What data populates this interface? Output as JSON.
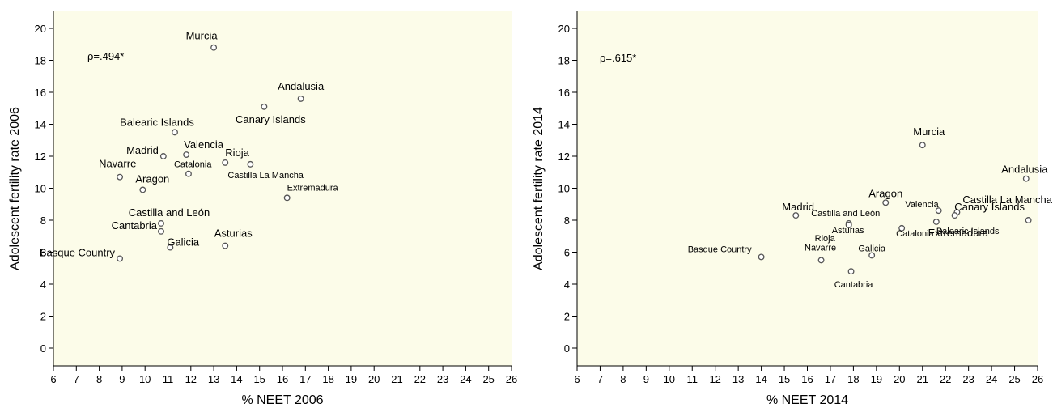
{
  "chart_data": [
    {
      "type": "scatter",
      "xlabel": "% NEET 2006",
      "ylabel": "Adolescent fertility rate 2006",
      "xlim": [
        6,
        26
      ],
      "ylim": [
        -1,
        21
      ],
      "xticks": [
        6,
        7,
        8,
        9,
        10,
        11,
        12,
        13,
        14,
        15,
        16,
        17,
        18,
        19,
        20,
        21,
        22,
        23,
        24,
        25,
        26
      ],
      "yticks": [
        0,
        2,
        4,
        6,
        8,
        10,
        12,
        14,
        16,
        18,
        20
      ],
      "grid": false,
      "annotation": "ρ=.494*",
      "points": [
        {
          "label": "Murcia",
          "x": 13.0,
          "y": 18.8
        },
        {
          "label": "Andalusia",
          "x": 16.8,
          "y": 15.6
        },
        {
          "label": "Canary Islands",
          "x": 15.2,
          "y": 15.1
        },
        {
          "label": "Balearic Islands",
          "x": 11.3,
          "y": 13.5
        },
        {
          "label": "Madrid",
          "x": 10.8,
          "y": 12.0
        },
        {
          "label": "Valencia",
          "x": 11.8,
          "y": 12.1
        },
        {
          "label": "Rioja",
          "x": 13.5,
          "y": 11.6
        },
        {
          "label": "Castilla La Mancha",
          "x": 14.6,
          "y": 11.5
        },
        {
          "label": "Catalonia",
          "x": 11.9,
          "y": 10.9
        },
        {
          "label": "Navarre",
          "x": 8.9,
          "y": 10.7
        },
        {
          "label": "Aragon",
          "x": 9.9,
          "y": 9.9
        },
        {
          "label": "Extremadura",
          "x": 16.2,
          "y": 9.4
        },
        {
          "label": "Castilla and León",
          "x": 10.7,
          "y": 7.8
        },
        {
          "label": "Cantabria",
          "x": 10.7,
          "y": 7.3
        },
        {
          "label": "Galicia",
          "x": 11.1,
          "y": 6.3
        },
        {
          "label": "Asturias",
          "x": 13.5,
          "y": 6.4
        },
        {
          "label": "Basque Country",
          "x": 8.9,
          "y": 5.6
        }
      ]
    },
    {
      "type": "scatter",
      "xlabel": "% NEET 2014",
      "ylabel": "Adolescent fertility rate 2014",
      "xlim": [
        6,
        26
      ],
      "ylim": [
        -1,
        21
      ],
      "xticks": [
        6,
        7,
        8,
        9,
        10,
        11,
        12,
        13,
        14,
        15,
        16,
        17,
        18,
        19,
        20,
        21,
        22,
        23,
        24,
        25,
        26
      ],
      "yticks": [
        0,
        2,
        4,
        6,
        8,
        10,
        12,
        14,
        16,
        18,
        20
      ],
      "grid": false,
      "annotation": "ρ=.615*",
      "points": [
        {
          "label": "Murcia",
          "x": 21.0,
          "y": 12.7
        },
        {
          "label": "Andalusia",
          "x": 25.5,
          "y": 10.6
        },
        {
          "label": "Aragon",
          "x": 19.4,
          "y": 9.1
        },
        {
          "label": "Castilla La Mancha",
          "x": 22.5,
          "y": 8.5
        },
        {
          "label": "Valencia",
          "x": 21.7,
          "y": 8.6
        },
        {
          "label": "Canary Islands",
          "x": 25.6,
          "y": 8.0
        },
        {
          "label": "Madrid",
          "x": 15.5,
          "y": 8.3
        },
        {
          "label": "Castilla and León",
          "x": 17.8,
          "y": 7.8
        },
        {
          "label": "Asturias",
          "x": 17.8,
          "y": 7.7
        },
        {
          "label": "Balearic Islands",
          "x": 21.6,
          "y": 7.9
        },
        {
          "label": "Extremadura",
          "x": 22.4,
          "y": 8.3
        },
        {
          "label": "Rioja",
          "x": 17.8,
          "y": 7.7
        },
        {
          "label": "Catalonia",
          "x": 20.1,
          "y": 7.5
        },
        {
          "label": "Galicia",
          "x": 18.8,
          "y": 5.8
        },
        {
          "label": "Basque Country",
          "x": 14.0,
          "y": 5.7
        },
        {
          "label": "Navarre",
          "x": 16.6,
          "y": 5.5
        },
        {
          "label": "Cantabria",
          "x": 17.9,
          "y": 4.8
        }
      ]
    }
  ]
}
